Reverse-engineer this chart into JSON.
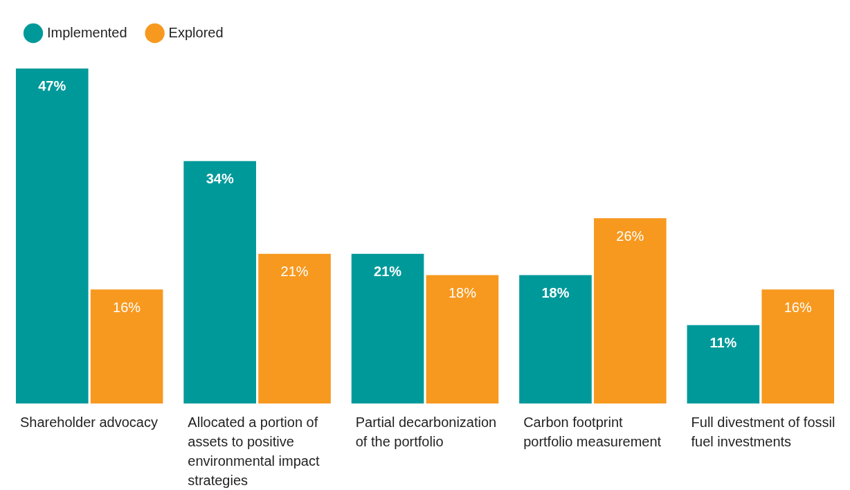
{
  "chart_data": {
    "type": "bar",
    "categories": [
      "Shareholder advocacy",
      "Allocated a portion of assets to positive environmental impact strategies",
      "Partial decarbonization of the portfolio",
      "Carbon footprint portfolio measurement",
      "Full divestment of fossil fuel investments"
    ],
    "series": [
      {
        "name": "Implemented",
        "color": "#00999a",
        "values": [
          47,
          34,
          21,
          18,
          11
        ],
        "value_labels": [
          "47%",
          "34%",
          "21%",
          "18%",
          "11%"
        ]
      },
      {
        "name": "Explored",
        "color": "#f7991f",
        "values": [
          16,
          21,
          18,
          26,
          16
        ],
        "value_labels": [
          "16%",
          "21%",
          "18%",
          "26%",
          "16%"
        ]
      }
    ],
    "legend": "top left",
    "grid": false
  }
}
